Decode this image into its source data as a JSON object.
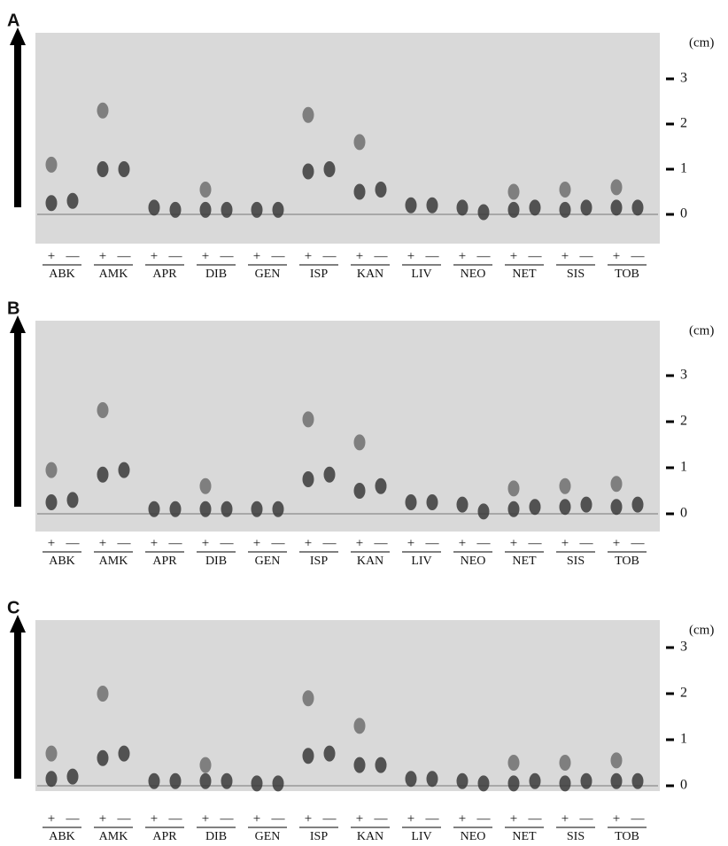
{
  "unit": "(cm)",
  "scale_ticks": [
    0,
    1,
    2,
    3
  ],
  "lane_signs": [
    "+",
    "—"
  ],
  "panels": [
    {
      "label": "A",
      "groups": [
        {
          "name": "ABK",
          "lanes": [
            [
              1.1,
              0.25
            ],
            [
              0.3
            ]
          ]
        },
        {
          "name": "AMK",
          "lanes": [
            [
              2.3,
              1.0
            ],
            [
              1.0
            ]
          ]
        },
        {
          "name": "APR",
          "lanes": [
            [
              0.15
            ],
            [
              0.1
            ]
          ]
        },
        {
          "name": "DIB",
          "lanes": [
            [
              0.55,
              0.1
            ],
            [
              0.1
            ]
          ]
        },
        {
          "name": "GEN",
          "lanes": [
            [
              0.1
            ],
            [
              0.1
            ]
          ]
        },
        {
          "name": "ISP",
          "lanes": [
            [
              2.2,
              0.95
            ],
            [
              1.0
            ]
          ]
        },
        {
          "name": "KAN",
          "lanes": [
            [
              1.6,
              0.5
            ],
            [
              0.55
            ]
          ]
        },
        {
          "name": "LIV",
          "lanes": [
            [
              0.2
            ],
            [
              0.2
            ]
          ]
        },
        {
          "name": "NEO",
          "lanes": [
            [
              0.15
            ],
            [
              0.05
            ]
          ]
        },
        {
          "name": "NET",
          "lanes": [
            [
              0.5,
              0.1
            ],
            [
              0.15
            ]
          ]
        },
        {
          "name": "SIS",
          "lanes": [
            [
              0.55,
              0.1
            ],
            [
              0.15
            ]
          ]
        },
        {
          "name": "TOB",
          "lanes": [
            [
              0.6,
              0.15
            ],
            [
              0.15
            ]
          ]
        }
      ]
    },
    {
      "label": "B",
      "groups": [
        {
          "name": "ABK",
          "lanes": [
            [
              0.95,
              0.25
            ],
            [
              0.3
            ]
          ]
        },
        {
          "name": "AMK",
          "lanes": [
            [
              2.25,
              0.85
            ],
            [
              0.95
            ]
          ]
        },
        {
          "name": "APR",
          "lanes": [
            [
              0.1
            ],
            [
              0.1
            ]
          ]
        },
        {
          "name": "DIB",
          "lanes": [
            [
              0.6,
              0.1
            ],
            [
              0.1
            ]
          ]
        },
        {
          "name": "GEN",
          "lanes": [
            [
              0.1
            ],
            [
              0.1
            ]
          ]
        },
        {
          "name": "ISP",
          "lanes": [
            [
              2.05,
              0.75
            ],
            [
              0.85
            ]
          ]
        },
        {
          "name": "KAN",
          "lanes": [
            [
              1.55,
              0.5
            ],
            [
              0.6
            ]
          ]
        },
        {
          "name": "LIV",
          "lanes": [
            [
              0.25
            ],
            [
              0.25
            ]
          ]
        },
        {
          "name": "NEO",
          "lanes": [
            [
              0.2
            ],
            [
              0.05
            ]
          ]
        },
        {
          "name": "NET",
          "lanes": [
            [
              0.55,
              0.1
            ],
            [
              0.15
            ]
          ]
        },
        {
          "name": "SIS",
          "lanes": [
            [
              0.6,
              0.15
            ],
            [
              0.2
            ]
          ]
        },
        {
          "name": "TOB",
          "lanes": [
            [
              0.65,
              0.15
            ],
            [
              0.2
            ]
          ]
        }
      ]
    },
    {
      "label": "C",
      "groups": [
        {
          "name": "ABK",
          "lanes": [
            [
              0.7,
              0.15
            ],
            [
              0.2
            ]
          ]
        },
        {
          "name": "AMK",
          "lanes": [
            [
              2.0,
              0.6
            ],
            [
              0.7
            ]
          ]
        },
        {
          "name": "APR",
          "lanes": [
            [
              0.1
            ],
            [
              0.1
            ]
          ]
        },
        {
          "name": "DIB",
          "lanes": [
            [
              0.45,
              0.1
            ],
            [
              0.1
            ]
          ]
        },
        {
          "name": "GEN",
          "lanes": [
            [
              0.05
            ],
            [
              0.05
            ]
          ]
        },
        {
          "name": "ISP",
          "lanes": [
            [
              1.9,
              0.65
            ],
            [
              0.7
            ]
          ]
        },
        {
          "name": "KAN",
          "lanes": [
            [
              1.3,
              0.45
            ],
            [
              0.45
            ]
          ]
        },
        {
          "name": "LIV",
          "lanes": [
            [
              0.15
            ],
            [
              0.15
            ]
          ]
        },
        {
          "name": "NEO",
          "lanes": [
            [
              0.1
            ],
            [
              0.05
            ]
          ]
        },
        {
          "name": "NET",
          "lanes": [
            [
              0.5,
              0.05
            ],
            [
              0.1
            ]
          ]
        },
        {
          "name": "SIS",
          "lanes": [
            [
              0.5,
              0.05
            ],
            [
              0.1
            ]
          ]
        },
        {
          "name": "TOB",
          "lanes": [
            [
              0.55,
              0.1
            ],
            [
              0.1
            ]
          ]
        }
      ]
    }
  ]
}
